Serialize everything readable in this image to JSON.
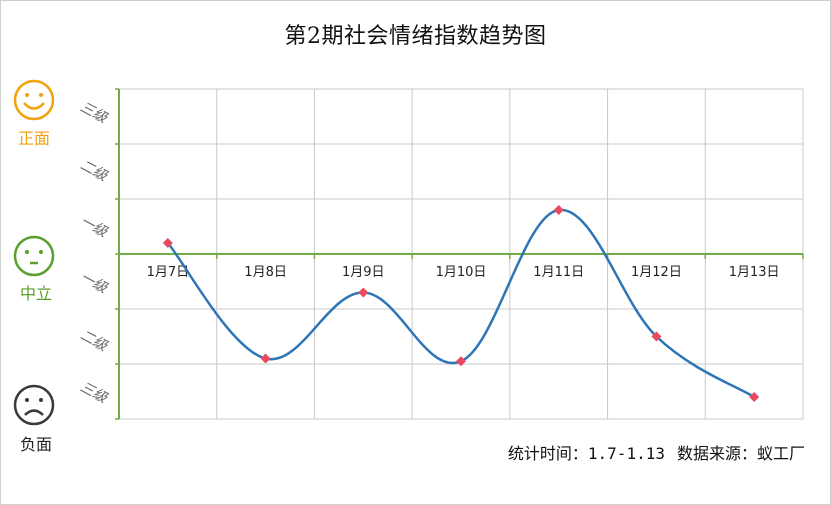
{
  "title": "第2期社会情绪指数趋势图",
  "faces": {
    "positive": {
      "label": "正面",
      "icon": "smiley-face-icon",
      "color": "#f2a10f"
    },
    "neutral": {
      "label": "中立",
      "icon": "neutral-face-icon",
      "color": "#5aa02c"
    },
    "negative": {
      "label": "负面",
      "icon": "sad-face-icon",
      "color": "#3a3a3a"
    }
  },
  "footer": {
    "stats_period": "统计时间：1.7-1.13",
    "data_source": "数据来源：蚁工厂"
  },
  "chart_data": {
    "type": "line",
    "title": "第2期社会情绪指数趋势图",
    "categories": [
      "1月7日",
      "1月8日",
      "1月9日",
      "1月10日",
      "1月11日",
      "1月12日",
      "1月13日"
    ],
    "values": [
      0.2,
      -1.9,
      -0.7,
      -1.95,
      0.8,
      -1.5,
      -2.6
    ],
    "ylim": [
      -3,
      3
    ],
    "y_tick_labels": [
      {
        "value": 2.5,
        "label": "三级"
      },
      {
        "value": 1.5,
        "label": "二级"
      },
      {
        "value": 0.5,
        "label": "一级"
      },
      {
        "value": -0.5,
        "label": "一级"
      },
      {
        "value": -1.5,
        "label": "二级"
      },
      {
        "value": -2.5,
        "label": "三级"
      }
    ],
    "line_color": "#2e75b6",
    "marker_color": "#e84a5f",
    "axis_color": "#70ad47",
    "grid": true,
    "curve": "smooth"
  }
}
